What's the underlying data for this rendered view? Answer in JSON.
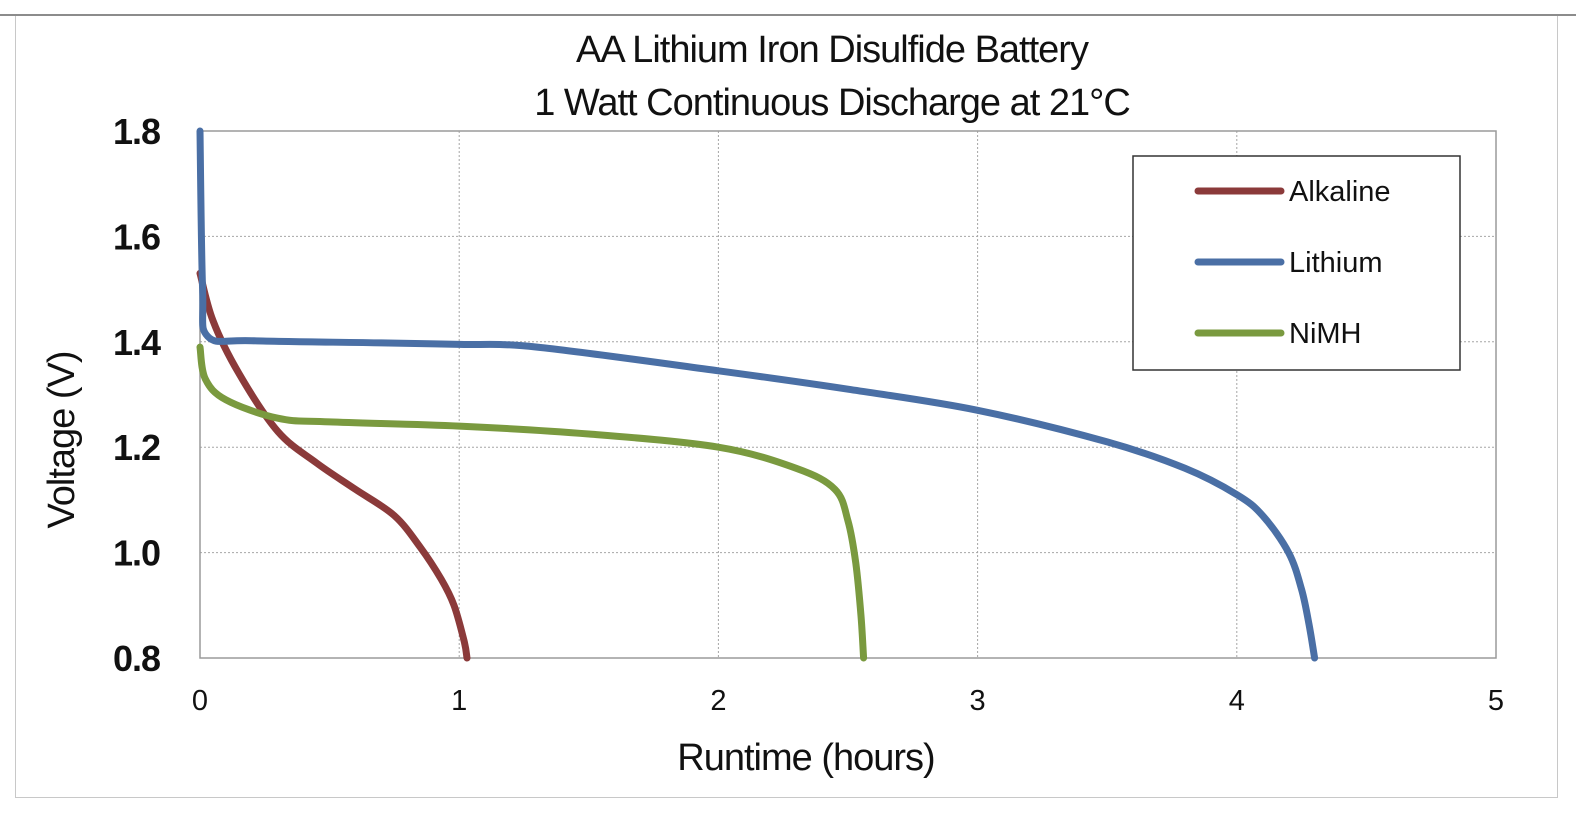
{
  "chart_data": {
    "type": "line",
    "title": "AA Lithium Iron Disulfide Battery",
    "subtitle": "1 Watt Continuous Discharge at 21°C",
    "xlabel": "Runtime (hours)",
    "ylabel": "Voltage (V)",
    "xlim": [
      0,
      5
    ],
    "ylim": [
      0.8,
      1.8
    ],
    "xticks": [
      "0",
      "1",
      "2",
      "3",
      "4",
      "5"
    ],
    "yticks": [
      "0.8",
      "1.0",
      "1.2",
      "1.4",
      "1.6",
      "1.8"
    ],
    "grid": true,
    "legend_position": "top-right",
    "series": [
      {
        "name": "Alkaline",
        "color": "#8B3A3A",
        "points": [
          [
            0,
            1.53
          ],
          [
            0.05,
            1.44
          ],
          [
            0.15,
            1.34
          ],
          [
            0.3,
            1.23
          ],
          [
            0.45,
            1.17
          ],
          [
            0.6,
            1.12
          ],
          [
            0.75,
            1.07
          ],
          [
            0.85,
            1.01
          ],
          [
            0.93,
            0.95
          ],
          [
            0.98,
            0.9
          ],
          [
            1.02,
            0.83
          ],
          [
            1.03,
            0.8
          ]
        ]
      },
      {
        "name": "Lithium",
        "color": "#4A6FA5",
        "points": [
          [
            0,
            1.8
          ],
          [
            0.01,
            1.5
          ],
          [
            0.03,
            1.41
          ],
          [
            0.2,
            1.402
          ],
          [
            0.7,
            1.398
          ],
          [
            1.0,
            1.395
          ],
          [
            1.3,
            1.39
          ],
          [
            2.0,
            1.345
          ],
          [
            2.5,
            1.31
          ],
          [
            3.0,
            1.27
          ],
          [
            3.5,
            1.21
          ],
          [
            3.8,
            1.16
          ],
          [
            4.0,
            1.11
          ],
          [
            4.1,
            1.07
          ],
          [
            4.2,
            1.0
          ],
          [
            4.25,
            0.93
          ],
          [
            4.28,
            0.86
          ],
          [
            4.3,
            0.8
          ]
        ]
      },
      {
        "name": "NiMH",
        "color": "#7A9A3F",
        "points": [
          [
            0,
            1.39
          ],
          [
            0.02,
            1.33
          ],
          [
            0.1,
            1.29
          ],
          [
            0.3,
            1.255
          ],
          [
            0.5,
            1.248
          ],
          [
            1.0,
            1.24
          ],
          [
            1.5,
            1.225
          ],
          [
            2.0,
            1.2
          ],
          [
            2.3,
            1.16
          ],
          [
            2.45,
            1.12
          ],
          [
            2.5,
            1.06
          ],
          [
            2.53,
            0.98
          ],
          [
            2.55,
            0.88
          ],
          [
            2.56,
            0.8
          ]
        ]
      }
    ]
  }
}
